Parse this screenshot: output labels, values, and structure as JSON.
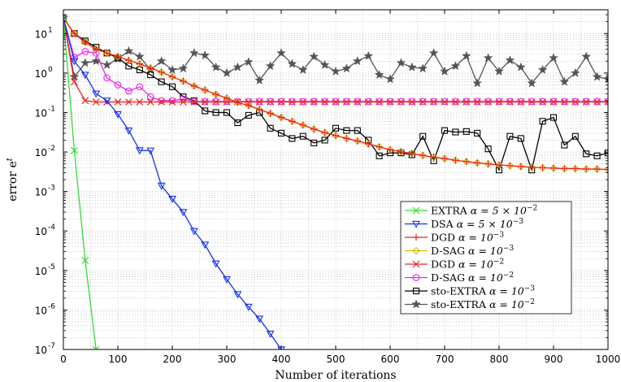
{
  "chart_data": {
    "type": "line",
    "xlabel": "Number of iterations",
    "ylabel": "error e^t",
    "ylabel_base": "error e",
    "ylabel_sup": "t",
    "xlim": [
      0,
      1000
    ],
    "ylim": [
      1e-07,
      40
    ],
    "yscale": "log",
    "grid": true,
    "legend_position": "lower-right",
    "x_ticks": [
      "0",
      "100",
      "200",
      "300",
      "400",
      "500",
      "600",
      "700",
      "800",
      "900",
      "1000"
    ],
    "y_ticks": [
      {
        "base": "10",
        "exp": "1"
      },
      {
        "base": "10",
        "exp": "0"
      },
      {
        "base": "10",
        "exp": "-1"
      },
      {
        "base": "10",
        "exp": "-2"
      },
      {
        "base": "10",
        "exp": "-3"
      },
      {
        "base": "10",
        "exp": "-4"
      },
      {
        "base": "10",
        "exp": "-5"
      },
      {
        "base": "10",
        "exp": "-6"
      },
      {
        "base": "10",
        "exp": "-7"
      }
    ],
    "series": [
      {
        "name": "EXTRA α = 5 × 10^-2",
        "label_text": "EXTRA ",
        "label_math": "α = 5 × 10",
        "label_sup": "−2",
        "color": "#33dd33",
        "marker": "x",
        "x": [
          0,
          20,
          40,
          60
        ],
        "y": [
          25,
          0.011,
          1.8e-05,
          1e-07
        ]
      },
      {
        "name": "DSA α = 5 × 10^-3",
        "label_text": "DSA ",
        "label_math": "α = 5 × 10",
        "label_sup": "−3",
        "color": "#1133ee",
        "marker": "triangle-down",
        "x": [
          0,
          20,
          40,
          60,
          80,
          100,
          120,
          140,
          160,
          180,
          200,
          220,
          240,
          260,
          280,
          300,
          320,
          340,
          360,
          380,
          400
        ],
        "y": [
          25,
          2.0,
          0.9,
          0.3,
          0.2,
          0.09,
          0.035,
          0.011,
          0.0108,
          0.0014,
          0.00065,
          0.0003,
          0.0001,
          4.5e-05,
          1.5e-05,
          6e-06,
          2.5e-06,
          1.2e-06,
          6e-07,
          2.5e-07,
          1e-07
        ]
      },
      {
        "name": "DGD α = 10^-3",
        "label_text": "DGD ",
        "label_math": "α = 10",
        "label_sup": "−3",
        "color": "#ee2222",
        "marker": "plus",
        "x": [
          0,
          20,
          40,
          60,
          80,
          100,
          120,
          140,
          160,
          180,
          200,
          220,
          240,
          260,
          280,
          300,
          320,
          340,
          360,
          380,
          400,
          420,
          440,
          460,
          480,
          500,
          520,
          540,
          560,
          580,
          600,
          620,
          640,
          660,
          680,
          700,
          720,
          740,
          760,
          780,
          800,
          820,
          840,
          860,
          880,
          900,
          920,
          940,
          960,
          980,
          1000
        ],
        "y": [
          25,
          10,
          6,
          4,
          3.2,
          2.6,
          2.1,
          1.7,
          1.35,
          1.05,
          0.8,
          0.62,
          0.47,
          0.37,
          0.29,
          0.23,
          0.18,
          0.15,
          0.12,
          0.095,
          0.075,
          0.06,
          0.048,
          0.038,
          0.031,
          0.026,
          0.022,
          0.019,
          0.016,
          0.0135,
          0.0115,
          0.0102,
          0.0092,
          0.0082,
          0.0074,
          0.0068,
          0.0062,
          0.0057,
          0.0053,
          0.005,
          0.0047,
          0.0045,
          0.0043,
          0.0041,
          0.004,
          0.0039,
          0.0038,
          0.0038,
          0.0037,
          0.0037,
          0.0036
        ]
      },
      {
        "name": "D-SAG α = 10^-3",
        "label_text": "D-SAG ",
        "label_math": "α = 10",
        "label_sup": "−3",
        "color": "#d4b400",
        "marker": "diamond",
        "x": [
          0,
          20,
          40,
          60,
          80,
          100,
          120,
          140,
          160,
          180,
          200,
          220,
          240,
          260,
          280,
          300,
          320,
          340,
          360,
          380,
          400,
          420,
          440,
          460,
          480,
          500,
          520,
          540,
          560,
          580,
          600,
          620,
          640,
          660,
          680,
          700,
          720,
          740,
          760,
          780,
          800,
          820,
          840,
          860,
          880,
          900,
          920,
          940,
          960,
          980,
          1000
        ],
        "y": [
          25,
          10,
          6,
          4,
          3.2,
          2.6,
          2.1,
          1.7,
          1.35,
          1.05,
          0.8,
          0.62,
          0.47,
          0.37,
          0.29,
          0.23,
          0.18,
          0.15,
          0.12,
          0.095,
          0.075,
          0.06,
          0.048,
          0.038,
          0.031,
          0.026,
          0.022,
          0.019,
          0.016,
          0.0135,
          0.0115,
          0.0102,
          0.0092,
          0.0082,
          0.0074,
          0.0068,
          0.0062,
          0.0057,
          0.0053,
          0.005,
          0.0047,
          0.0045,
          0.0043,
          0.0041,
          0.004,
          0.0039,
          0.0038,
          0.0038,
          0.0037,
          0.0037,
          0.0036
        ]
      },
      {
        "name": "DGD α = 10^-2",
        "label_text": "DGD ",
        "label_math": "α = 10",
        "label_sup": "−2",
        "color": "#ee2222",
        "marker": "x",
        "x": [
          0,
          20,
          40,
          60,
          80,
          100,
          120,
          140,
          160,
          180,
          200,
          220,
          240,
          260,
          280,
          300,
          320,
          340,
          360,
          380,
          400,
          420,
          440,
          460,
          480,
          500,
          520,
          540,
          560,
          580,
          600,
          620,
          640,
          660,
          680,
          700,
          720,
          740,
          760,
          780,
          800,
          820,
          840,
          860,
          880,
          900,
          920,
          940,
          960,
          980,
          1000
        ],
        "y": [
          25,
          0.6,
          0.2,
          0.185,
          0.185,
          0.185,
          0.185,
          0.185,
          0.185,
          0.185,
          0.185,
          0.185,
          0.185,
          0.185,
          0.185,
          0.185,
          0.185,
          0.185,
          0.185,
          0.185,
          0.185,
          0.185,
          0.185,
          0.185,
          0.185,
          0.185,
          0.185,
          0.185,
          0.185,
          0.185,
          0.185,
          0.185,
          0.185,
          0.185,
          0.185,
          0.185,
          0.185,
          0.185,
          0.185,
          0.185,
          0.185,
          0.185,
          0.185,
          0.185,
          0.185,
          0.185,
          0.185,
          0.185,
          0.185,
          0.185,
          0.185
        ]
      },
      {
        "name": "D-SAG α = 10^-2",
        "label_text": "D-SAG ",
        "label_math": "α = 10",
        "label_sup": "−2",
        "color": "#ee22ee",
        "marker": "circle",
        "x": [
          0,
          20,
          40,
          60,
          80,
          100,
          120,
          140,
          160,
          180,
          200,
          220,
          240,
          260,
          280,
          300,
          320,
          340,
          360,
          380,
          400,
          420,
          440,
          460,
          480,
          500,
          520,
          540,
          560,
          580,
          600,
          620,
          640,
          660,
          680,
          700,
          720,
          740,
          760,
          780,
          800,
          820,
          840,
          860,
          880,
          900,
          920,
          940,
          960,
          980,
          1000
        ],
        "y": [
          25,
          2.5,
          3.5,
          3.2,
          0.75,
          0.5,
          0.35,
          0.45,
          0.25,
          0.2,
          0.2,
          0.22,
          0.19,
          0.19,
          0.19,
          0.19,
          0.19,
          0.19,
          0.19,
          0.19,
          0.19,
          0.19,
          0.19,
          0.19,
          0.19,
          0.19,
          0.19,
          0.19,
          0.19,
          0.19,
          0.19,
          0.19,
          0.19,
          0.19,
          0.19,
          0.19,
          0.19,
          0.19,
          0.19,
          0.19,
          0.19,
          0.19,
          0.19,
          0.19,
          0.19,
          0.19,
          0.19,
          0.19,
          0.19,
          0.19,
          0.19
        ]
      },
      {
        "name": "sto-EXTRA α = 10^-3",
        "label_text": "sto-EXTRA ",
        "label_math": "α = 10",
        "label_sup": "−3",
        "color": "#000000",
        "marker": "square",
        "x": [
          0,
          20,
          40,
          60,
          80,
          100,
          120,
          140,
          160,
          180,
          200,
          220,
          240,
          260,
          280,
          300,
          320,
          340,
          360,
          380,
          400,
          420,
          440,
          460,
          480,
          500,
          520,
          540,
          560,
          580,
          600,
          620,
          640,
          660,
          680,
          700,
          720,
          740,
          760,
          780,
          800,
          820,
          840,
          860,
          880,
          900,
          920,
          940,
          960,
          980,
          1000
        ],
        "y": [
          25,
          10,
          6.5,
          4.5,
          3.2,
          2.4,
          1.5,
          1.2,
          0.9,
          0.6,
          0.45,
          0.25,
          0.2,
          0.11,
          0.1,
          0.1,
          0.055,
          0.085,
          0.1,
          0.04,
          0.03,
          0.022,
          0.025,
          0.017,
          0.02,
          0.04,
          0.035,
          0.035,
          0.02,
          0.008,
          0.0095,
          0.0095,
          0.0085,
          0.025,
          0.006,
          0.035,
          0.032,
          0.033,
          0.03,
          0.012,
          0.0035,
          0.025,
          0.022,
          0.0035,
          0.06,
          0.075,
          0.015,
          0.025,
          0.009,
          0.008,
          0.0095
        ]
      },
      {
        "name": "sto-EXTRA α = 10^-2",
        "label_text": "sto-EXTRA ",
        "label_math": "α = 10",
        "label_sup": "−2",
        "color": "#555555",
        "marker": "star",
        "x": [
          0,
          20,
          40,
          60,
          80,
          100,
          120,
          140,
          160,
          180,
          200,
          220,
          240,
          260,
          280,
          300,
          320,
          340,
          360,
          380,
          400,
          420,
          440,
          460,
          480,
          500,
          520,
          540,
          560,
          580,
          600,
          620,
          640,
          660,
          680,
          700,
          720,
          740,
          760,
          780,
          800,
          820,
          840,
          860,
          880,
          900,
          920,
          940,
          960,
          980,
          1000
        ],
        "y": [
          25,
          0.8,
          1.8,
          2.0,
          1.6,
          2.3,
          3.6,
          2.6,
          1.2,
          2.0,
          1.2,
          1.3,
          3.2,
          2.8,
          1.4,
          1.0,
          1.4,
          1.9,
          0.65,
          1.5,
          3.2,
          1.7,
          1.2,
          2.6,
          1.6,
          1.1,
          1.3,
          2.0,
          2.7,
          0.9,
          0.7,
          1.8,
          1.4,
          1.3,
          3.2,
          1.1,
          1.5,
          2.7,
          0.55,
          2.4,
          1.1,
          2.1,
          1.4,
          0.55,
          1.2,
          2.4,
          0.6,
          1.0,
          2.6,
          0.8,
          0.7
        ]
      }
    ]
  }
}
